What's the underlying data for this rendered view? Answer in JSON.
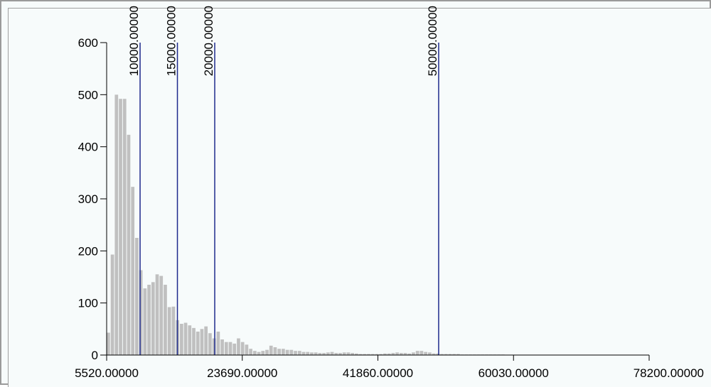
{
  "chart_data": {
    "type": "bar",
    "title": "",
    "xlabel": "",
    "ylabel": "",
    "xlim": [
      5520,
      78200
    ],
    "ylim": [
      0,
      600
    ],
    "bin_width": 545,
    "x_tick_values": [
      5520,
      23690,
      41860,
      60030,
      78200
    ],
    "x_tick_labels": [
      "5520.00000",
      "23690.00000",
      "41860.00000",
      "60030.00000",
      "78200.00000"
    ],
    "y_tick_values": [
      0,
      100,
      200,
      300,
      400,
      500,
      600
    ],
    "y_tick_labels": [
      "0",
      "100",
      "200",
      "300",
      "400",
      "500",
      "600"
    ],
    "grid": false,
    "bar_color": "#c0c0c0",
    "line_color": "#1e2a8c",
    "threshold_lines": [
      {
        "x": 10000,
        "label": "10000.00000"
      },
      {
        "x": 15000,
        "label": "15000.00000"
      },
      {
        "x": 20000,
        "label": "20000.00000"
      },
      {
        "x": 50000,
        "label": "50000.00000"
      }
    ],
    "values": [
      43,
      193,
      500,
      492,
      492,
      423,
      323,
      225,
      163,
      128,
      135,
      140,
      155,
      152,
      135,
      92,
      93,
      67,
      60,
      62,
      57,
      52,
      45,
      50,
      55,
      42,
      32,
      45,
      30,
      25,
      25,
      22,
      32,
      25,
      20,
      12,
      8,
      6,
      8,
      10,
      18,
      15,
      12,
      12,
      10,
      10,
      8,
      8,
      6,
      6,
      5,
      5,
      4,
      4,
      5,
      6,
      4,
      4,
      5,
      5,
      4,
      3,
      2,
      2,
      2,
      2,
      2,
      2,
      3,
      3,
      4,
      5,
      4,
      4,
      3,
      5,
      8,
      8,
      6,
      5,
      3,
      3,
      2,
      2,
      2,
      2,
      2,
      1,
      1,
      1,
      1,
      1,
      1,
      1,
      1,
      1,
      1,
      1
    ]
  }
}
